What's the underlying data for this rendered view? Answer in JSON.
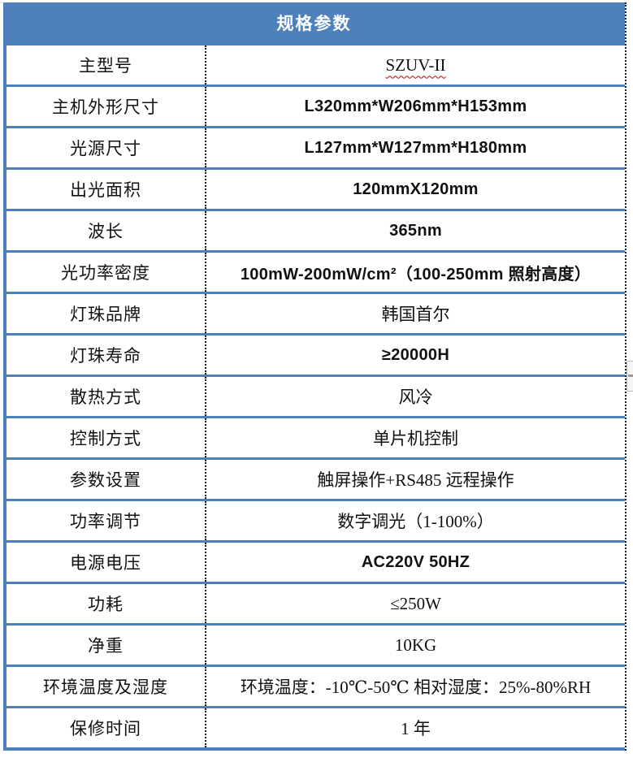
{
  "colors": {
    "accent": "#4E80BC",
    "grid_dotted": "#1A1A1A",
    "header_text": "#FFFFFF",
    "body_text": "#111111",
    "spellcheck": "#C00000"
  },
  "header": {
    "title": "规格参数"
  },
  "table": {
    "rows": [
      {
        "label": "主型号",
        "value": "SZUV-II",
        "value_style": "serif",
        "underline": "red-wavy"
      },
      {
        "label": "主机外形尺寸",
        "value": "L320mm*W206mm*H153mm",
        "value_style": "sans"
      },
      {
        "label": "光源尺寸",
        "value": "L127mm*W127mm*H180mm",
        "value_style": "sans"
      },
      {
        "label": "出光面积",
        "value": "120mmX120mm",
        "value_style": "sans"
      },
      {
        "label": "波长",
        "value": "365nm",
        "value_style": "sans"
      },
      {
        "label": "光功率密度",
        "value": "100mW-200mW/cm²（100-250mm 照射高度）",
        "value_style": "sans"
      },
      {
        "label": "灯珠品牌",
        "value": "韩国首尔",
        "value_style": "serif"
      },
      {
        "label": "灯珠寿命",
        "value": "≥20000H",
        "value_style": "sans"
      },
      {
        "label": "散热方式",
        "value": "风冷",
        "value_style": "serif"
      },
      {
        "label": "控制方式",
        "value": "单片机控制",
        "value_style": "serif"
      },
      {
        "label": "参数设置",
        "value": "触屏操作+RS485 远程操作",
        "value_style": "serif"
      },
      {
        "label": "功率调节",
        "value": "数字调光（1-100%）",
        "value_style": "serif"
      },
      {
        "label": "电源电压",
        "value": "AC220V 50HZ",
        "value_style": "sans"
      },
      {
        "label": "功耗",
        "value": "≤250W",
        "value_style": "serif"
      },
      {
        "label": "净重",
        "value": "10KG",
        "value_style": "serif"
      },
      {
        "label": "环境温度及湿度",
        "value": "环境温度：-10℃-50℃ 相对湿度：25%-80%RH",
        "value_style": "serif"
      },
      {
        "label": "保修时间",
        "value": "1 年",
        "value_style": "serif"
      }
    ]
  },
  "icons": {
    "scrollbar_grip": "scrollbar-grip"
  }
}
